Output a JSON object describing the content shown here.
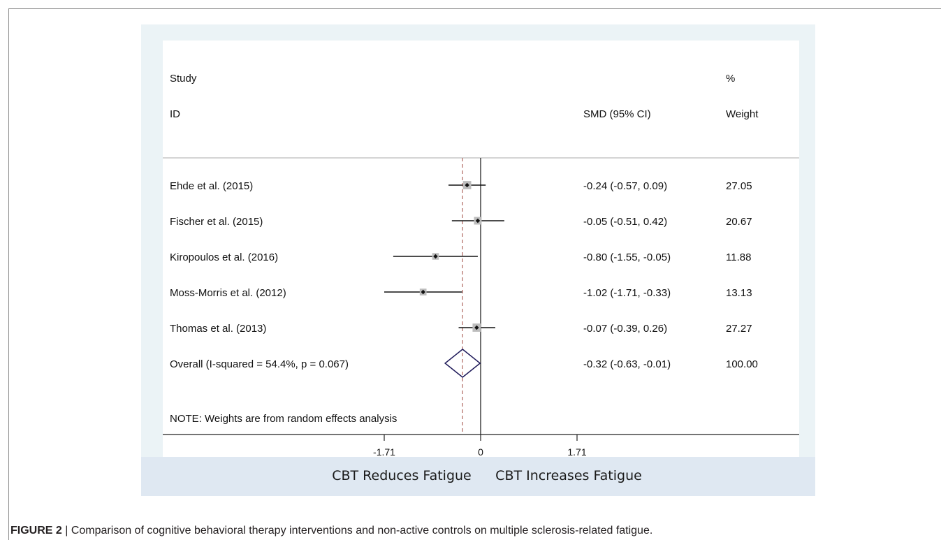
{
  "caption": {
    "label": "FIGURE 2",
    "text": "| Comparison of cognitive behavioral therapy interventions and non-active controls on multiple sclerosis-related fatigue."
  },
  "colors": {
    "outer_bg": "#ebf3f6",
    "band_bg": "#dfe8f2",
    "dashed_line": "#b5736d",
    "diamond": "#1f1a5a",
    "box": "#bdbdbd"
  },
  "chart_data": {
    "type": "forest",
    "columns": {
      "study_header": [
        "Study",
        "ID"
      ],
      "effect_header": "SMD (95% CI)",
      "weight_header": [
        "%",
        "Weight"
      ]
    },
    "studies": [
      {
        "label": "Ehde et al.  (2015)",
        "smd": -0.24,
        "lo": -0.57,
        "hi": 0.09,
        "ci_text": "-0.24 (-0.57, 0.09)",
        "weight": 27.05,
        "weight_text": "27.05"
      },
      {
        "label": "Fischer et al.  (2015)",
        "smd": -0.05,
        "lo": -0.51,
        "hi": 0.42,
        "ci_text": "-0.05 (-0.51, 0.42)",
        "weight": 20.67,
        "weight_text": "20.67"
      },
      {
        "label": "Kiropoulos et al. (2016)",
        "smd": -0.8,
        "lo": -1.55,
        "hi": -0.05,
        "ci_text": "-0.80 (-1.55, -0.05)",
        "weight": 11.88,
        "weight_text": "11.88"
      },
      {
        "label": "Moss-Morris et al. (2012)",
        "smd": -1.02,
        "lo": -1.71,
        "hi": -0.33,
        "ci_text": "-1.02 (-1.71, -0.33)",
        "weight": 13.13,
        "weight_text": "13.13"
      },
      {
        "label": "Thomas et al.  (2013)",
        "smd": -0.07,
        "lo": -0.39,
        "hi": 0.26,
        "ci_text": "-0.07 (-0.39, 0.26)",
        "weight": 27.27,
        "weight_text": "27.27"
      }
    ],
    "overall": {
      "label": "Overall  (I-squared = 54.4%, p = 0.067)",
      "smd": -0.32,
      "lo": -0.63,
      "hi": -0.01,
      "ci_text": "-0.32 (-0.63, -0.01)",
      "weight_text": "100.00"
    },
    "note": "NOTE: Weights are from random effects analysis",
    "x_ticks": [
      {
        "value": -1.71,
        "label": "-1.71"
      },
      {
        "value": 0,
        "label": "0"
      },
      {
        "value": 1.71,
        "label": "1.71"
      }
    ],
    "xlim": [
      -1.71,
      1.71
    ],
    "band_labels": [
      "CBT Reduces Fatigue",
      "CBT Increases Fatigue"
    ]
  }
}
